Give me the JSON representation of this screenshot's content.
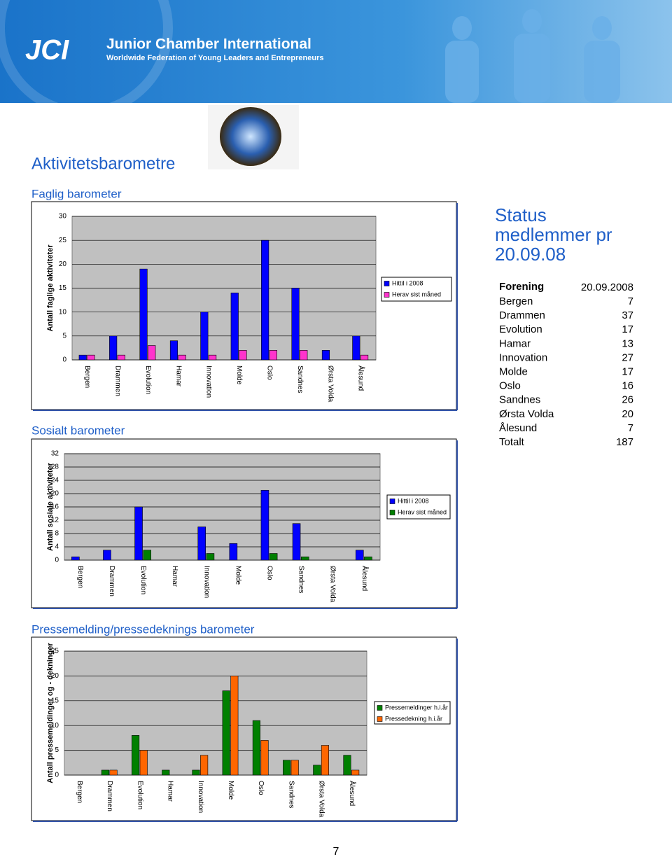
{
  "header": {
    "logo": "JCI",
    "org": "Junior Chamber International",
    "tagline": "Worldwide Federation of Young Leaders and Entrepreneurs"
  },
  "title": "Aktivitetsbarometre",
  "sections": [
    "Faglig barometer",
    "Sosialt barometer",
    "Pressemelding/pressedeknings barometer"
  ],
  "status": {
    "title": "Status medlemmer pr 20.09.08",
    "columns": [
      "Forening",
      "20.09.2008"
    ],
    "rows": [
      [
        "Bergen",
        "7"
      ],
      [
        "Drammen",
        "37"
      ],
      [
        "Evolution",
        "17"
      ],
      [
        "Hamar",
        "13"
      ],
      [
        "Innovation",
        "27"
      ],
      [
        "Molde",
        "17"
      ],
      [
        "Oslo",
        "16"
      ],
      [
        "Sandnes",
        "26"
      ],
      [
        "Ørsta Volda",
        "20"
      ],
      [
        "Ålesund",
        "7"
      ],
      [
        "Totalt",
        "187"
      ]
    ]
  },
  "page_number": "7",
  "chart_data": [
    {
      "type": "bar",
      "y_label": "Antall faglige aktiviteter",
      "categories": [
        "Bergen",
        "Drammen",
        "Evolution",
        "Hamar",
        "Innovation",
        "Molde",
        "Oslo",
        "Sandnes",
        "Ørsta Volda",
        "Ålesund"
      ],
      "series": [
        {
          "name": "Hittil i 2008",
          "color": "#0000ff",
          "values": [
            1,
            5,
            19,
            4,
            10,
            14,
            25,
            15,
            2,
            5
          ]
        },
        {
          "name": "Herav sist måned",
          "color": "#ff33cc",
          "values": [
            1,
            1,
            3,
            1,
            1,
            2,
            2,
            2,
            0,
            1
          ]
        }
      ],
      "ylim": [
        0,
        30
      ],
      "yticks": [
        0,
        5,
        10,
        15,
        20,
        25,
        30
      ],
      "grid": true
    },
    {
      "type": "bar",
      "y_label": "Antall sosiale aktiviteter",
      "categories": [
        "Bergen",
        "Drammen",
        "Evolution",
        "Hamar",
        "Innovation",
        "Molde",
        "Oslo",
        "Sandnes",
        "Ørsta Volda",
        "Ålesund"
      ],
      "series": [
        {
          "name": "Hittil i 2008",
          "color": "#0000ff",
          "values": [
            1,
            3,
            16,
            0,
            10,
            5,
            21,
            11,
            0,
            3
          ]
        },
        {
          "name": "Herav sist måned",
          "color": "#007f00",
          "values": [
            0,
            0,
            3,
            0,
            2,
            0,
            2,
            1,
            0,
            1
          ]
        }
      ],
      "ylim": [
        0,
        32
      ],
      "yticks": [
        0,
        4,
        8,
        12,
        16,
        20,
        24,
        28,
        32
      ],
      "grid": true
    },
    {
      "type": "bar",
      "y_label": "Antall pressemeldinger og - dekninger",
      "categories": [
        "Bergen",
        "Drammen",
        "Evolution",
        "Hamar",
        "Innovation",
        "Molde",
        "Oslo",
        "Sandnes",
        "Ørsta Volda",
        "Ålesund"
      ],
      "series": [
        {
          "name": "Pressemeldinger  h.i.år",
          "color": "#008000",
          "values": [
            0,
            1,
            8,
            1,
            1,
            17,
            11,
            3,
            2,
            4
          ]
        },
        {
          "name": "Pressedekning  h.i.år",
          "color": "#ff6600",
          "values": [
            0,
            1,
            5,
            0,
            4,
            20,
            7,
            3,
            6,
            1
          ]
        }
      ],
      "ylim": [
        0,
        25
      ],
      "yticks": [
        0,
        5,
        10,
        15,
        20,
        25
      ],
      "grid": true
    }
  ]
}
